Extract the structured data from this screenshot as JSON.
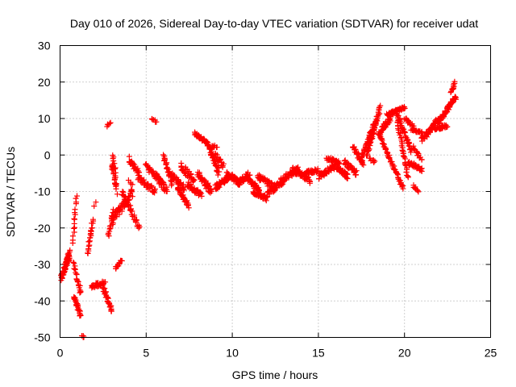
{
  "chart_data": {
    "type": "scatter",
    "title": "Day 010 of 2026, Sidereal Day-to-day VTEC variation (SDTVAR) for receiver udat",
    "xlabel": "GPS time / hours",
    "ylabel": "SDTVAR / TECUs",
    "xlim": [
      0,
      25
    ],
    "ylim": [
      -50,
      30
    ],
    "xticks": [
      0,
      5,
      10,
      15,
      20,
      25
    ],
    "yticks": [
      -50,
      -40,
      -30,
      -20,
      -10,
      0,
      10,
      20,
      30
    ],
    "grid": true,
    "marker": "+",
    "series_color": "#ff0000",
    "segments": [
      {
        "x0": 0.05,
        "x1": 0.55,
        "y0": -34.0,
        "y1": -27.0,
        "n": 60,
        "jitter": 1.8
      },
      {
        "x0": 0.4,
        "x1": 0.55,
        "y0": -30.0,
        "y1": -28.0,
        "n": 10,
        "jitter": 1.0
      },
      {
        "x0": 0.75,
        "x1": 0.95,
        "y0": -24.0,
        "y1": -11.0,
        "n": 16,
        "jitter": 1.2
      },
      {
        "x0": 0.8,
        "x1": 1.2,
        "y0": -30.0,
        "y1": -38.0,
        "n": 22,
        "jitter": 1.5
      },
      {
        "x0": 0.8,
        "x1": 1.2,
        "y0": -39.0,
        "y1": -44.0,
        "n": 26,
        "jitter": 1.2
      },
      {
        "x0": 1.3,
        "x1": 1.4,
        "y0": -49.5,
        "y1": -50.0,
        "n": 4,
        "jitter": 0.3
      },
      {
        "x0": 1.6,
        "x1": 1.9,
        "y0": -27.0,
        "y1": -18.0,
        "n": 24,
        "jitter": 1.0
      },
      {
        "x0": 1.8,
        "x1": 2.6,
        "y0": -36.0,
        "y1": -35.0,
        "n": 30,
        "jitter": 1.2
      },
      {
        "x0": 2.0,
        "x1": 2.1,
        "y0": -14.0,
        "y1": -13.0,
        "n": 2,
        "jitter": 0.3
      },
      {
        "x0": 2.5,
        "x1": 3.0,
        "y0": -36.0,
        "y1": -43.0,
        "n": 30,
        "jitter": 1.5
      },
      {
        "x0": 2.75,
        "x1": 2.9,
        "y0": 8.0,
        "y1": 9.0,
        "n": 5,
        "jitter": 0.5
      },
      {
        "x0": 2.8,
        "x1": 3.1,
        "y0": -22.0,
        "y1": -15.0,
        "n": 20,
        "jitter": 1.5
      },
      {
        "x0": 3.0,
        "x1": 3.3,
        "y0": -2.0,
        "y1": -10.0,
        "n": 22,
        "jitter": 2.0
      },
      {
        "x0": 3.05,
        "x1": 3.25,
        "y0": 0.0,
        "y1": -6.0,
        "n": 10,
        "jitter": 1.0
      },
      {
        "x0": 3.2,
        "x1": 3.6,
        "y0": -31.0,
        "y1": -29.0,
        "n": 15,
        "jitter": 1.0
      },
      {
        "x0": 3.0,
        "x1": 4.2,
        "y0": -18.0,
        "y1": -10.0,
        "n": 55,
        "jitter": 2.5
      },
      {
        "x0": 3.6,
        "x1": 4.6,
        "y0": -10.0,
        "y1": -20.0,
        "n": 35,
        "jitter": 2.0
      },
      {
        "x0": 4.0,
        "x1": 4.6,
        "y0": -1.0,
        "y1": -5.0,
        "n": 30,
        "jitter": 1.5
      },
      {
        "x0": 4.0,
        "x1": 4.2,
        "y0": -7.0,
        "y1": -8.0,
        "n": 4,
        "jitter": 0.5
      },
      {
        "x0": 4.5,
        "x1": 5.5,
        "y0": -6.0,
        "y1": -10.0,
        "n": 40,
        "jitter": 1.5
      },
      {
        "x0": 5.3,
        "x1": 5.6,
        "y0": 10.0,
        "y1": 9.0,
        "n": 6,
        "jitter": 0.5
      },
      {
        "x0": 5.0,
        "x1": 6.0,
        "y0": -3.0,
        "y1": -8.0,
        "n": 40,
        "jitter": 1.5
      },
      {
        "x0": 5.5,
        "x1": 6.2,
        "y0": -5.0,
        "y1": -10.0,
        "n": 35,
        "jitter": 2.0
      },
      {
        "x0": 6.0,
        "x1": 6.5,
        "y0": 0.0,
        "y1": -8.0,
        "n": 25,
        "jitter": 1.5
      },
      {
        "x0": 6.4,
        "x1": 7.2,
        "y0": -5.0,
        "y1": -9.0,
        "n": 35,
        "jitter": 1.5
      },
      {
        "x0": 6.8,
        "x1": 7.5,
        "y0": -9.0,
        "y1": -14.0,
        "n": 30,
        "jitter": 1.0
      },
      {
        "x0": 7.0,
        "x1": 7.8,
        "y0": -3.0,
        "y1": -7.0,
        "n": 35,
        "jitter": 2.0
      },
      {
        "x0": 7.4,
        "x1": 8.2,
        "y0": -8.0,
        "y1": -11.0,
        "n": 35,
        "jitter": 1.5
      },
      {
        "x0": 7.8,
        "x1": 8.6,
        "y0": 6.0,
        "y1": 3.0,
        "n": 35,
        "jitter": 1.0
      },
      {
        "x0": 8.0,
        "x1": 8.8,
        "y0": -5.0,
        "y1": -10.0,
        "n": 40,
        "jitter": 2.0
      },
      {
        "x0": 8.6,
        "x1": 9.2,
        "y0": 3.0,
        "y1": -5.0,
        "n": 35,
        "jitter": 1.5
      },
      {
        "x0": 8.7,
        "x1": 9.1,
        "y0": 2.0,
        "y1": 2.5,
        "n": 10,
        "jitter": 0.8
      },
      {
        "x0": 9.0,
        "x1": 9.8,
        "y0": -9.0,
        "y1": -6.0,
        "n": 40,
        "jitter": 1.5
      },
      {
        "x0": 9.0,
        "x1": 9.5,
        "y0": 0.0,
        "y1": -3.0,
        "n": 20,
        "jitter": 1.5
      },
      {
        "x0": 9.7,
        "x1": 10.5,
        "y0": -5.0,
        "y1": -8.0,
        "n": 40,
        "jitter": 1.5
      },
      {
        "x0": 10.3,
        "x1": 11.0,
        "y0": -8.0,
        "y1": -5.0,
        "n": 35,
        "jitter": 1.5
      },
      {
        "x0": 10.8,
        "x1": 11.6,
        "y0": -6.0,
        "y1": -10.0,
        "n": 40,
        "jitter": 1.5
      },
      {
        "x0": 11.2,
        "x1": 12.0,
        "y0": -10.0,
        "y1": -12.0,
        "n": 40,
        "jitter": 1.2
      },
      {
        "x0": 11.5,
        "x1": 12.5,
        "y0": -6.0,
        "y1": -9.0,
        "n": 45,
        "jitter": 1.5
      },
      {
        "x0": 12.0,
        "x1": 13.0,
        "y0": -11.0,
        "y1": -7.0,
        "n": 45,
        "jitter": 1.5
      },
      {
        "x0": 12.8,
        "x1": 13.8,
        "y0": -7.0,
        "y1": -4.0,
        "n": 45,
        "jitter": 1.5
      },
      {
        "x0": 13.5,
        "x1": 14.5,
        "y0": -4.0,
        "y1": -7.0,
        "n": 45,
        "jitter": 1.5
      },
      {
        "x0": 14.2,
        "x1": 15.0,
        "y0": -5.0,
        "y1": -4.0,
        "n": 35,
        "jitter": 1.2
      },
      {
        "x0": 15.0,
        "x1": 16.0,
        "y0": -6.0,
        "y1": -3.0,
        "n": 45,
        "jitter": 1.5
      },
      {
        "x0": 15.5,
        "x1": 16.2,
        "y0": -1.0,
        "y1": -2.0,
        "n": 30,
        "jitter": 1.0
      },
      {
        "x0": 16.0,
        "x1": 16.7,
        "y0": -3.0,
        "y1": -6.0,
        "n": 35,
        "jitter": 1.5
      },
      {
        "x0": 16.5,
        "x1": 17.2,
        "y0": -2.0,
        "y1": -5.0,
        "n": 35,
        "jitter": 1.5
      },
      {
        "x0": 17.0,
        "x1": 17.6,
        "y0": 2.0,
        "y1": -2.0,
        "n": 30,
        "jitter": 1.5
      },
      {
        "x0": 17.5,
        "x1": 18.3,
        "y0": -1.0,
        "y1": 9.0,
        "n": 45,
        "jitter": 1.5
      },
      {
        "x0": 17.8,
        "x1": 18.6,
        "y0": 0.0,
        "y1": 13.0,
        "n": 50,
        "jitter": 1.2
      },
      {
        "x0": 18.0,
        "x1": 18.3,
        "y0": -1.0,
        "y1": -2.0,
        "n": 8,
        "jitter": 0.8
      },
      {
        "x0": 18.5,
        "x1": 19.2,
        "y0": 6.0,
        "y1": 10.0,
        "n": 35,
        "jitter": 1.5
      },
      {
        "x0": 18.5,
        "x1": 19.9,
        "y0": 6.0,
        "y1": -9.0,
        "n": 60,
        "jitter": 0.8
      },
      {
        "x0": 19.0,
        "x1": 20.0,
        "y0": 11.0,
        "y1": 13.0,
        "n": 45,
        "jitter": 0.8
      },
      {
        "x0": 19.5,
        "x1": 20.4,
        "y0": 12.0,
        "y1": 1.0,
        "n": 45,
        "jitter": 1.2
      },
      {
        "x0": 19.6,
        "x1": 20.2,
        "y0": 9.0,
        "y1": -6.0,
        "n": 40,
        "jitter": 0.8
      },
      {
        "x0": 20.0,
        "x1": 20.5,
        "y0": 10.0,
        "y1": 8.0,
        "n": 15,
        "jitter": 1.0
      },
      {
        "x0": 20.2,
        "x1": 21.0,
        "y0": -2.0,
        "y1": -4.0,
        "n": 35,
        "jitter": 1.0
      },
      {
        "x0": 20.4,
        "x1": 21.0,
        "y0": 7.0,
        "y1": 6.0,
        "n": 25,
        "jitter": 0.8
      },
      {
        "x0": 20.5,
        "x1": 20.8,
        "y0": -8.5,
        "y1": -10.0,
        "n": 8,
        "jitter": 0.5
      },
      {
        "x0": 20.5,
        "x1": 21.0,
        "y0": 2.0,
        "y1": -1.0,
        "n": 15,
        "jitter": 1.0
      },
      {
        "x0": 21.0,
        "x1": 22.0,
        "y0": 4.0,
        "y1": 10.0,
        "n": 45,
        "jitter": 1.5
      },
      {
        "x0": 21.5,
        "x1": 22.5,
        "y0": 7.0,
        "y1": 8.0,
        "n": 40,
        "jitter": 1.0
      },
      {
        "x0": 22.0,
        "x1": 22.8,
        "y0": 9.0,
        "y1": 15.0,
        "n": 40,
        "jitter": 1.2
      },
      {
        "x0": 22.5,
        "x1": 23.0,
        "y0": 13.0,
        "y1": 16.0,
        "n": 20,
        "jitter": 1.0
      },
      {
        "x0": 22.7,
        "x1": 22.95,
        "y0": 17.0,
        "y1": 20.0,
        "n": 12,
        "jitter": 0.8
      }
    ]
  }
}
